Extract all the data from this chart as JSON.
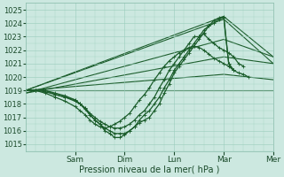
{
  "bg_color": "#cce8e0",
  "grid_color": "#99ccbb",
  "line_color": "#1a5c2a",
  "ylim": [
    1014.5,
    1025.5
  ],
  "yticks": [
    1015,
    1016,
    1017,
    1018,
    1019,
    1020,
    1021,
    1022,
    1023,
    1024,
    1025
  ],
  "xlabel": "Pression niveau de la mer( hPa )",
  "xlim": [
    0,
    5.0
  ],
  "day_positions": [
    1.0,
    2.0,
    3.0,
    4.0,
    5.0
  ],
  "day_labels": [
    "Sam",
    "Dim",
    "Lun",
    "Mar",
    "Mer"
  ],
  "straight_lines": [
    {
      "x": [
        0.0,
        4.0,
        5.0
      ],
      "y": [
        1019.0,
        1019.0,
        1019.0
      ]
    },
    {
      "x": [
        0.0,
        4.0,
        5.0
      ],
      "y": [
        1019.0,
        1020.2,
        1019.8
      ]
    },
    {
      "x": [
        0.0,
        4.0,
        5.0
      ],
      "y": [
        1018.8,
        1021.5,
        1021.0
      ]
    },
    {
      "x": [
        0.0,
        4.0,
        5.0
      ],
      "y": [
        1018.8,
        1022.8,
        1021.5
      ]
    },
    {
      "x": [
        0.0,
        4.0,
        5.0
      ],
      "y": [
        1019.0,
        1024.3,
        1021.0
      ]
    },
    {
      "x": [
        0.0,
        4.0,
        5.0
      ],
      "y": [
        1019.0,
        1024.5,
        1021.5
      ]
    }
  ],
  "wiggly_lines": [
    {
      "x": [
        0.0,
        0.2,
        0.4,
        0.6,
        0.8,
        1.0,
        1.1,
        1.2,
        1.3,
        1.4,
        1.5,
        1.6,
        1.7,
        1.8,
        1.9,
        2.0,
        2.1,
        2.2,
        2.3,
        2.4,
        2.5,
        2.6,
        2.7,
        2.8,
        2.9,
        3.0,
        3.1,
        3.2,
        3.3,
        3.4,
        3.5,
        3.6,
        3.7,
        3.8,
        3.9,
        4.0,
        4.1,
        4.2
      ],
      "y": [
        1019.0,
        1019.0,
        1019.0,
        1018.7,
        1018.5,
        1018.3,
        1018.0,
        1017.7,
        1017.2,
        1016.8,
        1016.5,
        1016.0,
        1015.8,
        1015.5,
        1015.5,
        1015.7,
        1016.0,
        1016.3,
        1016.6,
        1016.8,
        1017.0,
        1017.5,
        1018.0,
        1018.8,
        1019.5,
        1020.3,
        1020.8,
        1021.3,
        1021.8,
        1022.3,
        1022.8,
        1023.3,
        1023.8,
        1024.2,
        1024.4,
        1024.5,
        1021.0,
        1020.5
      ]
    },
    {
      "x": [
        0.0,
        0.2,
        0.4,
        0.6,
        0.8,
        1.0,
        1.1,
        1.2,
        1.3,
        1.4,
        1.5,
        1.6,
        1.7,
        1.8,
        1.9,
        2.0,
        2.1,
        2.2,
        2.3,
        2.4,
        2.5,
        2.6,
        2.7,
        2.8,
        2.9,
        3.0,
        3.1,
        3.2,
        3.3,
        3.4,
        3.5,
        3.6,
        3.7,
        3.8,
        3.9,
        4.0,
        4.1,
        4.2
      ],
      "y": [
        1019.0,
        1019.0,
        1019.0,
        1018.8,
        1018.6,
        1018.3,
        1018.0,
        1017.6,
        1017.2,
        1016.8,
        1016.5,
        1016.2,
        1016.0,
        1015.8,
        1015.8,
        1015.8,
        1016.0,
        1016.3,
        1016.8,
        1017.2,
        1017.5,
        1018.0,
        1018.5,
        1019.2,
        1019.8,
        1020.5,
        1021.0,
        1021.5,
        1022.0,
        1022.5,
        1023.0,
        1023.5,
        1023.8,
        1024.0,
        1024.3,
        1024.4,
        1021.0,
        1020.5
      ]
    },
    {
      "x": [
        0.0,
        0.2,
        0.4,
        0.6,
        0.8,
        1.0,
        1.1,
        1.2,
        1.3,
        1.4,
        1.5,
        1.6,
        1.7,
        1.8,
        1.9,
        2.0,
        2.1,
        2.2,
        2.3,
        2.4,
        2.5,
        2.6,
        2.7,
        2.8,
        2.9,
        3.0,
        3.1,
        3.2,
        3.3,
        3.4,
        3.5,
        3.6,
        3.7,
        3.8,
        3.9,
        4.0,
        4.1,
        4.2,
        4.3,
        4.4
      ],
      "y": [
        1019.0,
        1019.0,
        1018.9,
        1018.7,
        1018.5,
        1018.2,
        1018.0,
        1017.7,
        1017.3,
        1017.0,
        1016.7,
        1016.5,
        1016.3,
        1016.2,
        1016.2,
        1016.3,
        1016.5,
        1016.8,
        1017.2,
        1017.5,
        1018.0,
        1018.5,
        1019.2,
        1019.8,
        1020.5,
        1021.0,
        1021.5,
        1022.0,
        1022.5,
        1023.0,
        1023.0,
        1023.2,
        1022.8,
        1022.5,
        1022.2,
        1022.0,
        1021.8,
        1021.5,
        1021.0,
        1020.8
      ]
    },
    {
      "x": [
        0.0,
        0.2,
        0.4,
        0.6,
        0.8,
        1.0,
        1.1,
        1.2,
        1.3,
        1.4,
        1.5,
        1.6,
        1.7,
        1.8,
        1.9,
        2.0,
        2.1,
        2.2,
        2.3,
        2.4,
        2.5,
        2.6,
        2.7,
        2.8,
        2.9,
        3.0,
        3.1,
        3.2,
        3.3,
        3.4,
        3.5,
        3.6,
        3.7,
        3.8,
        3.9,
        4.0,
        4.1,
        4.2,
        4.3,
        4.4,
        4.5
      ],
      "y": [
        1019.0,
        1019.0,
        1018.8,
        1018.5,
        1018.2,
        1017.8,
        1017.5,
        1017.2,
        1016.8,
        1016.5,
        1016.3,
        1016.2,
        1016.3,
        1016.5,
        1016.7,
        1017.0,
        1017.3,
        1017.8,
        1018.3,
        1018.7,
        1019.2,
        1019.8,
        1020.3,
        1020.8,
        1021.2,
        1021.5,
        1021.8,
        1022.0,
        1022.2,
        1022.3,
        1022.2,
        1022.0,
        1021.7,
        1021.4,
        1021.2,
        1021.0,
        1020.8,
        1020.5,
        1020.3,
        1020.2,
        1020.0
      ]
    }
  ]
}
